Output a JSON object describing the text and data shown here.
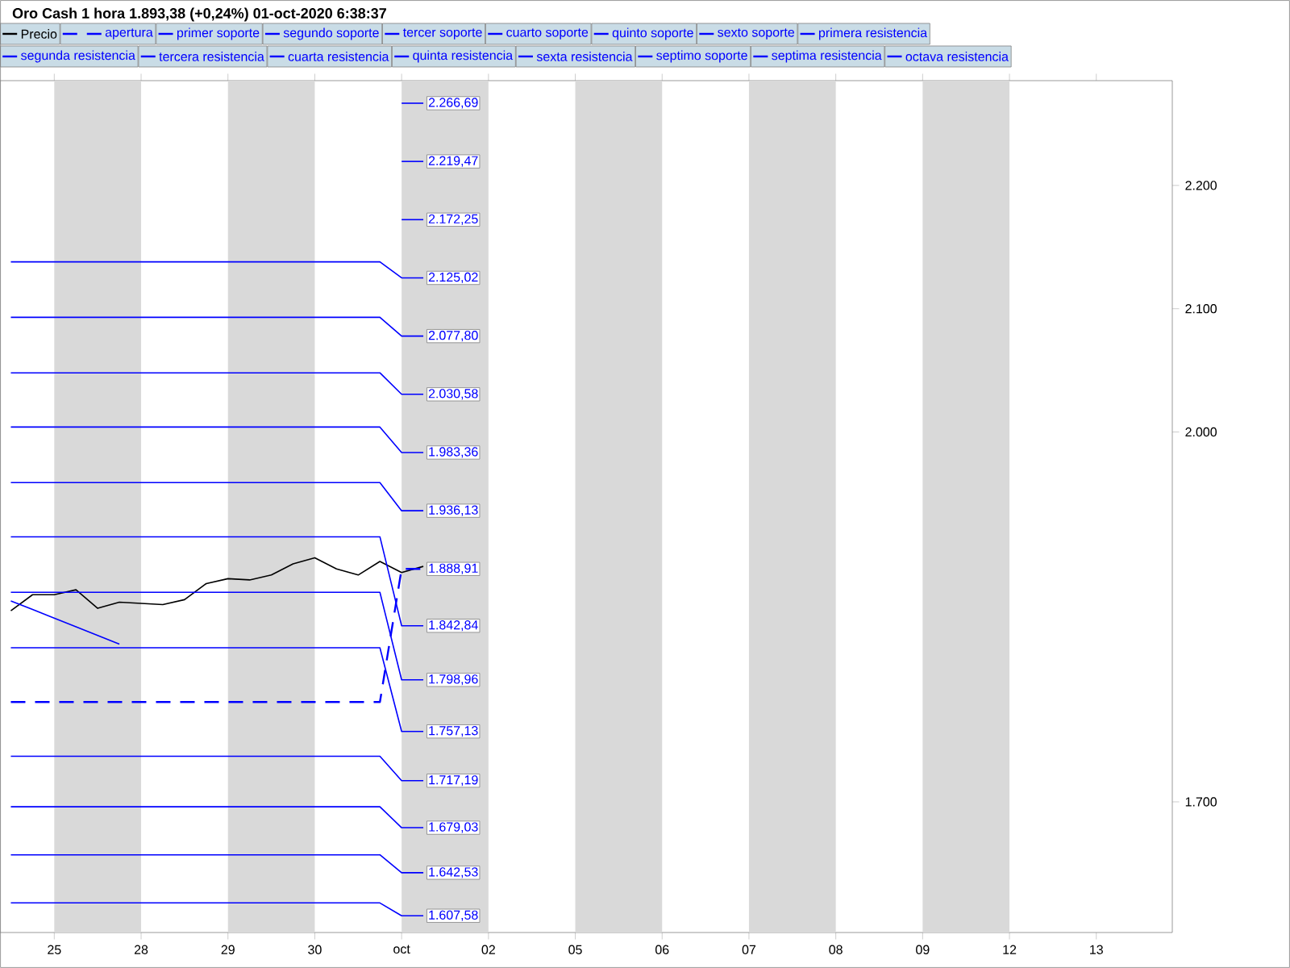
{
  "chart_data": {
    "type": "line",
    "title": "Oro Cash   1 hora   1.893,38 (+0,24%)   01-oct-2020 6:38:37",
    "legend": "top",
    "categories": [
      null,
      null,
      "25",
      null,
      null,
      null,
      "28",
      null,
      null,
      null,
      "29",
      null,
      null,
      null,
      "30",
      null,
      null,
      null,
      "oct",
      null,
      null,
      null,
      "02",
      null,
      null,
      null,
      "05",
      null,
      null,
      null,
      "06",
      null,
      null,
      null,
      "07",
      null,
      null,
      null,
      "08",
      null,
      null,
      null,
      "09",
      null,
      null,
      null,
      "12",
      null,
      null,
      null,
      "13",
      null,
      null,
      null
    ],
    "ylim": [
      1594,
      2285
    ],
    "yticks": [
      {
        "value": 1700,
        "label": "1.700"
      },
      {
        "value": 2000,
        "label": "2.000"
      },
      {
        "value": 2100,
        "label": "2.100"
      },
      {
        "value": 2200,
        "label": "2.200"
      }
    ],
    "bands": [
      {
        "axis": "x",
        "from": "25",
        "to": "28",
        "color": "#d9d9d9"
      },
      {
        "axis": "x",
        "from": "29",
        "to": "30",
        "color": "#d9d9d9"
      },
      {
        "axis": "x",
        "from": "oct",
        "to": "02",
        "color": "#d9d9d9"
      },
      {
        "axis": "x",
        "from": "05",
        "to": "06",
        "color": "#d9d9d9"
      },
      {
        "axis": "x",
        "from": "07",
        "to": "08",
        "color": "#d9d9d9"
      },
      {
        "axis": "x",
        "from": "09",
        "to": "12",
        "color": "#d9d9d9"
      }
    ],
    "series": [
      {
        "name": "Precio",
        "color": "#000000",
        "values": [
          1855,
          1868,
          1868,
          1872,
          1857,
          1862,
          1861,
          1860,
          1864,
          1877,
          1881,
          1880,
          1884,
          1893,
          1898,
          1889,
          1884,
          1895,
          1886,
          1891,
          null,
          null,
          null,
          null,
          null,
          null,
          null,
          null,
          null,
          null,
          null,
          null,
          null,
          null,
          null,
          null,
          null,
          null,
          null,
          null,
          null,
          null,
          null,
          null,
          null,
          null,
          null,
          null,
          null,
          null,
          null,
          null,
          null,
          null
        ]
      },
      {
        "name": "apertura",
        "color": "#0000ff",
        "line_style": "dashed",
        "values": [
          1781,
          1781,
          1781,
          1781,
          1781,
          1781,
          1781,
          1781,
          1781,
          1781,
          1781,
          1781,
          1781,
          1781,
          1781,
          1781,
          1781,
          1781,
          1888.91,
          1888.91,
          null,
          null,
          null,
          null,
          null,
          null,
          null,
          null,
          null,
          null,
          null,
          null,
          null,
          null,
          null,
          null,
          null,
          null,
          null,
          null,
          null,
          null,
          null,
          null,
          null,
          null,
          null,
          null,
          null,
          null,
          null,
          null,
          null,
          null
        ],
        "value_labels": [
          null,
          null,
          null,
          null,
          null,
          null,
          null,
          null,
          null,
          null,
          null,
          null,
          null,
          null,
          null,
          null,
          null,
          null,
          null,
          "1.888,91",
          null,
          null,
          null,
          null,
          null,
          null,
          null,
          null,
          null,
          null,
          null,
          null,
          null,
          null,
          null,
          null,
          null,
          null,
          null,
          null,
          null,
          null,
          null,
          null,
          null,
          null,
          null,
          null,
          null,
          null,
          null,
          null,
          null,
          null
        ]
      },
      {
        "name": "primer soporte",
        "color": "#0000ff",
        "values": [
          1915,
          1915,
          1915,
          1915,
          1915,
          1915,
          1915,
          1915,
          1915,
          1915,
          1915,
          1915,
          1915,
          1915,
          1915,
          1915,
          1915,
          1915,
          1842.84,
          1842.84,
          null,
          null,
          null,
          null,
          null,
          null,
          null,
          null,
          null,
          null,
          null,
          null,
          null,
          null,
          null,
          null,
          null,
          null,
          null,
          null,
          null,
          null,
          null,
          null,
          null,
          null,
          null,
          null,
          null,
          null,
          null,
          null,
          null,
          null
        ],
        "value_labels": [
          null,
          null,
          null,
          null,
          null,
          null,
          null,
          null,
          null,
          null,
          null,
          null,
          null,
          null,
          null,
          null,
          null,
          null,
          null,
          "1.842,84",
          null,
          null,
          null,
          null,
          null,
          null,
          null,
          null,
          null,
          null,
          null,
          null,
          null,
          null,
          null,
          null,
          null,
          null,
          null,
          null,
          null,
          null,
          null,
          null,
          null,
          null,
          null,
          null,
          null,
          null,
          null,
          null,
          null,
          null
        ]
      },
      {
        "name": "segundo soporte",
        "color": "#0000ff",
        "values": [
          1870,
          1870,
          1870,
          1870,
          1870,
          1870,
          1870,
          1870,
          1870,
          1870,
          1870,
          1870,
          1870,
          1870,
          1870,
          1870,
          1870,
          1870,
          1798.96,
          1798.96,
          null,
          null,
          null,
          null,
          null,
          null,
          null,
          null,
          null,
          null,
          null,
          null,
          null,
          null,
          null,
          null,
          null,
          null,
          null,
          null,
          null,
          null,
          null,
          null,
          null,
          null,
          null,
          null,
          null,
          null,
          null,
          null,
          null,
          null
        ],
        "value_labels": [
          null,
          null,
          null,
          null,
          null,
          null,
          null,
          null,
          null,
          null,
          null,
          null,
          null,
          null,
          null,
          null,
          null,
          null,
          null,
          "1.798,96",
          null,
          null,
          null,
          null,
          null,
          null,
          null,
          null,
          null,
          null,
          null,
          null,
          null,
          null,
          null,
          null,
          null,
          null,
          null,
          null,
          null,
          null,
          null,
          null,
          null,
          null,
          null,
          null,
          null,
          null,
          null,
          null,
          null,
          null
        ]
      },
      {
        "name": "tercer soporte",
        "color": "#0000ff",
        "values": [
          1825,
          1825,
          1825,
          1825,
          1825,
          1825,
          1825,
          1825,
          1825,
          1825,
          1825,
          1825,
          1825,
          1825,
          1825,
          1825,
          1825,
          1825,
          1757.13,
          1757.13,
          null,
          null,
          null,
          null,
          null,
          null,
          null,
          null,
          null,
          null,
          null,
          null,
          null,
          null,
          null,
          null,
          null,
          null,
          null,
          null,
          null,
          null,
          null,
          null,
          null,
          null,
          null,
          null,
          null,
          null,
          null,
          null,
          null,
          null
        ],
        "value_labels": [
          null,
          null,
          null,
          null,
          null,
          null,
          null,
          null,
          null,
          null,
          null,
          null,
          null,
          null,
          null,
          null,
          null,
          null,
          null,
          "1.757,13",
          null,
          null,
          null,
          null,
          null,
          null,
          null,
          null,
          null,
          null,
          null,
          null,
          null,
          null,
          null,
          null,
          null,
          null,
          null,
          null,
          null,
          null,
          null,
          null,
          null,
          null,
          null,
          null,
          null,
          null,
          null,
          null,
          null,
          null
        ]
      },
      {
        "name": "cuarto soporte",
        "color": "#0000ff",
        "values": [
          1737,
          1737,
          1737,
          1737,
          1737,
          1737,
          1737,
          1737,
          1737,
          1737,
          1737,
          1737,
          1737,
          1737,
          1737,
          1737,
          1737,
          1737,
          1717.19,
          1717.19,
          null,
          null,
          null,
          null,
          null,
          null,
          null,
          null,
          null,
          null,
          null,
          null,
          null,
          null,
          null,
          null,
          null,
          null,
          null,
          null,
          null,
          null,
          null,
          null,
          null,
          null,
          null,
          null,
          null,
          null,
          null,
          null,
          null,
          null
        ],
        "value_labels": [
          null,
          null,
          null,
          null,
          null,
          null,
          null,
          null,
          null,
          null,
          null,
          null,
          null,
          null,
          null,
          null,
          null,
          null,
          null,
          "1.717,19",
          null,
          null,
          null,
          null,
          null,
          null,
          null,
          null,
          null,
          null,
          null,
          null,
          null,
          null,
          null,
          null,
          null,
          null,
          null,
          null,
          null,
          null,
          null,
          null,
          null,
          null,
          null,
          null,
          null,
          null,
          null,
          null,
          null,
          null
        ]
      },
      {
        "name": "quinto soporte",
        "color": "#0000ff",
        "values": [
          1696,
          1696,
          1696,
          1696,
          1696,
          1696,
          1696,
          1696,
          1696,
          1696,
          1696,
          1696,
          1696,
          1696,
          1696,
          1696,
          1696,
          1696,
          1679.03,
          1679.03,
          null,
          null,
          null,
          null,
          null,
          null,
          null,
          null,
          null,
          null,
          null,
          null,
          null,
          null,
          null,
          null,
          null,
          null,
          null,
          null,
          null,
          null,
          null,
          null,
          null,
          null,
          null,
          null,
          null,
          null,
          null,
          null,
          null,
          null
        ],
        "value_labels": [
          null,
          null,
          null,
          null,
          null,
          null,
          null,
          null,
          null,
          null,
          null,
          null,
          null,
          null,
          null,
          null,
          null,
          null,
          null,
          "1.679,03",
          null,
          null,
          null,
          null,
          null,
          null,
          null,
          null,
          null,
          null,
          null,
          null,
          null,
          null,
          null,
          null,
          null,
          null,
          null,
          null,
          null,
          null,
          null,
          null,
          null,
          null,
          null,
          null,
          null,
          null,
          null,
          null,
          null,
          null
        ]
      },
      {
        "name": "sexto soporte",
        "color": "#0000ff",
        "values": [
          1657,
          1657,
          1657,
          1657,
          1657,
          1657,
          1657,
          1657,
          1657,
          1657,
          1657,
          1657,
          1657,
          1657,
          1657,
          1657,
          1657,
          1657,
          1642.53,
          1642.53,
          null,
          null,
          null,
          null,
          null,
          null,
          null,
          null,
          null,
          null,
          null,
          null,
          null,
          null,
          null,
          null,
          null,
          null,
          null,
          null,
          null,
          null,
          null,
          null,
          null,
          null,
          null,
          null,
          null,
          null,
          null,
          null,
          null,
          null
        ],
        "value_labels": [
          null,
          null,
          null,
          null,
          null,
          null,
          null,
          null,
          null,
          null,
          null,
          null,
          null,
          null,
          null,
          null,
          null,
          null,
          null,
          "1.642,53",
          null,
          null,
          null,
          null,
          null,
          null,
          null,
          null,
          null,
          null,
          null,
          null,
          null,
          null,
          null,
          null,
          null,
          null,
          null,
          null,
          null,
          null,
          null,
          null,
          null,
          null,
          null,
          null,
          null,
          null,
          null,
          null,
          null,
          null
        ]
      },
      {
        "name": "primera resistencia",
        "color": "#0000ff",
        "values": [
          1959,
          1959,
          1959,
          1959,
          1959,
          1959,
          1959,
          1959,
          1959,
          1959,
          1959,
          1959,
          1959,
          1959,
          1959,
          1959,
          1959,
          1959,
          1936.13,
          1936.13,
          null,
          null,
          null,
          null,
          null,
          null,
          null,
          null,
          null,
          null,
          null,
          null,
          null,
          null,
          null,
          null,
          null,
          null,
          null,
          null,
          null,
          null,
          null,
          null,
          null,
          null,
          null,
          null,
          null,
          null,
          null,
          null,
          null,
          null
        ],
        "value_labels": [
          null,
          null,
          null,
          null,
          null,
          null,
          null,
          null,
          null,
          null,
          null,
          null,
          null,
          null,
          null,
          null,
          null,
          null,
          null,
          "1.936,13",
          null,
          null,
          null,
          null,
          null,
          null,
          null,
          null,
          null,
          null,
          null,
          null,
          null,
          null,
          null,
          null,
          null,
          null,
          null,
          null,
          null,
          null,
          null,
          null,
          null,
          null,
          null,
          null,
          null,
          null,
          null,
          null,
          null,
          null
        ]
      },
      {
        "name": "segunda resistencia",
        "color": "#0000ff",
        "values": [
          2004,
          2004,
          2004,
          2004,
          2004,
          2004,
          2004,
          2004,
          2004,
          2004,
          2004,
          2004,
          2004,
          2004,
          2004,
          2004,
          2004,
          2004,
          1983.36,
          1983.36,
          null,
          null,
          null,
          null,
          null,
          null,
          null,
          null,
          null,
          null,
          null,
          null,
          null,
          null,
          null,
          null,
          null,
          null,
          null,
          null,
          null,
          null,
          null,
          null,
          null,
          null,
          null,
          null,
          null,
          null,
          null,
          null,
          null,
          null
        ],
        "value_labels": [
          null,
          null,
          null,
          null,
          null,
          null,
          null,
          null,
          null,
          null,
          null,
          null,
          null,
          null,
          null,
          null,
          null,
          null,
          null,
          "1.983,36",
          null,
          null,
          null,
          null,
          null,
          null,
          null,
          null,
          null,
          null,
          null,
          null,
          null,
          null,
          null,
          null,
          null,
          null,
          null,
          null,
          null,
          null,
          null,
          null,
          null,
          null,
          null,
          null,
          null,
          null,
          null,
          null,
          null,
          null
        ]
      },
      {
        "name": "tercera resistencia",
        "color": "#0000ff",
        "values": [
          2048,
          2048,
          2048,
          2048,
          2048,
          2048,
          2048,
          2048,
          2048,
          2048,
          2048,
          2048,
          2048,
          2048,
          2048,
          2048,
          2048,
          2048,
          2030.58,
          2030.58,
          null,
          null,
          null,
          null,
          null,
          null,
          null,
          null,
          null,
          null,
          null,
          null,
          null,
          null,
          null,
          null,
          null,
          null,
          null,
          null,
          null,
          null,
          null,
          null,
          null,
          null,
          null,
          null,
          null,
          null,
          null,
          null,
          null,
          null
        ],
        "value_labels": [
          null,
          null,
          null,
          null,
          null,
          null,
          null,
          null,
          null,
          null,
          null,
          null,
          null,
          null,
          null,
          null,
          null,
          null,
          null,
          "2.030,58",
          null,
          null,
          null,
          null,
          null,
          null,
          null,
          null,
          null,
          null,
          null,
          null,
          null,
          null,
          null,
          null,
          null,
          null,
          null,
          null,
          null,
          null,
          null,
          null,
          null,
          null,
          null,
          null,
          null,
          null,
          null,
          null,
          null,
          null
        ]
      },
      {
        "name": "cuarta resistencia",
        "color": "#0000ff",
        "values": [
          2093,
          2093,
          2093,
          2093,
          2093,
          2093,
          2093,
          2093,
          2093,
          2093,
          2093,
          2093,
          2093,
          2093,
          2093,
          2093,
          2093,
          2093,
          2077.8,
          2077.8,
          null,
          null,
          null,
          null,
          null,
          null,
          null,
          null,
          null,
          null,
          null,
          null,
          null,
          null,
          null,
          null,
          null,
          null,
          null,
          null,
          null,
          null,
          null,
          null,
          null,
          null,
          null,
          null,
          null,
          null,
          null,
          null,
          null,
          null
        ],
        "value_labels": [
          null,
          null,
          null,
          null,
          null,
          null,
          null,
          null,
          null,
          null,
          null,
          null,
          null,
          null,
          null,
          null,
          null,
          null,
          null,
          "2.077,80",
          null,
          null,
          null,
          null,
          null,
          null,
          null,
          null,
          null,
          null,
          null,
          null,
          null,
          null,
          null,
          null,
          null,
          null,
          null,
          null,
          null,
          null,
          null,
          null,
          null,
          null,
          null,
          null,
          null,
          null,
          null,
          null,
          null,
          null
        ]
      },
      {
        "name": "quinta resistencia",
        "color": "#0000ff",
        "values": [
          2138,
          2138,
          2138,
          2138,
          2138,
          2138,
          2138,
          2138,
          2138,
          2138,
          2138,
          2138,
          2138,
          2138,
          2138,
          2138,
          2138,
          2138,
          2125.02,
          2125.02,
          null,
          null,
          null,
          null,
          null,
          null,
          null,
          null,
          null,
          null,
          null,
          null,
          null,
          null,
          null,
          null,
          null,
          null,
          null,
          null,
          null,
          null,
          null,
          null,
          null,
          null,
          null,
          null,
          null,
          null,
          null,
          null,
          null,
          null
        ],
        "value_labels": [
          null,
          null,
          null,
          null,
          null,
          null,
          null,
          null,
          null,
          null,
          null,
          null,
          null,
          null,
          null,
          null,
          null,
          null,
          null,
          "2.125,02",
          null,
          null,
          null,
          null,
          null,
          null,
          null,
          null,
          null,
          null,
          null,
          null,
          null,
          null,
          null,
          null,
          null,
          null,
          null,
          null,
          null,
          null,
          null,
          null,
          null,
          null,
          null,
          null,
          null,
          null,
          null,
          null,
          null,
          null
        ]
      },
      {
        "name": "sexta resistencia",
        "color": "#0000ff",
        "values": [
          null,
          null,
          null,
          null,
          null,
          null,
          null,
          null,
          null,
          null,
          null,
          null,
          null,
          null,
          null,
          null,
          null,
          null,
          2172.25,
          2172.25,
          null,
          null,
          null,
          null,
          null,
          null,
          null,
          null,
          null,
          null,
          null,
          null,
          null,
          null,
          null,
          null,
          null,
          null,
          null,
          null,
          null,
          null,
          null,
          null,
          null,
          null,
          null,
          null,
          null,
          null,
          null,
          null,
          null,
          null
        ],
        "value_labels": [
          null,
          null,
          null,
          null,
          null,
          null,
          null,
          null,
          null,
          null,
          null,
          null,
          null,
          null,
          null,
          null,
          null,
          null,
          null,
          "2.172,25",
          null,
          null,
          null,
          null,
          null,
          null,
          null,
          null,
          null,
          null,
          null,
          null,
          null,
          null,
          null,
          null,
          null,
          null,
          null,
          null,
          null,
          null,
          null,
          null,
          null,
          null,
          null,
          null,
          null,
          null,
          null,
          null,
          null,
          null
        ]
      },
      {
        "name": "septimo soporte",
        "color": "#0000ff",
        "values": [
          1618,
          1618,
          1618,
          1618,
          1618,
          1618,
          1618,
          1618,
          1618,
          1618,
          1618,
          1618,
          1618,
          1618,
          1618,
          1618,
          1618,
          1618,
          1607.58,
          1607.58,
          null,
          null,
          null,
          null,
          null,
          null,
          null,
          null,
          null,
          null,
          null,
          null,
          null,
          null,
          null,
          null,
          null,
          null,
          null,
          null,
          null,
          null,
          null,
          null,
          null,
          null,
          null,
          null,
          null,
          null,
          null,
          null,
          null,
          null
        ],
        "value_labels": [
          null,
          null,
          null,
          null,
          null,
          null,
          null,
          null,
          null,
          null,
          null,
          null,
          null,
          null,
          null,
          null,
          null,
          null,
          null,
          "1.607,58",
          null,
          null,
          null,
          null,
          null,
          null,
          null,
          null,
          null,
          null,
          null,
          null,
          null,
          null,
          null,
          null,
          null,
          null,
          null,
          null,
          null,
          null,
          null,
          null,
          null,
          null,
          null,
          null,
          null,
          null,
          null,
          null,
          null,
          null
        ]
      },
      {
        "name": "septima resistencia",
        "color": "#0000ff",
        "values": [
          null,
          null,
          null,
          null,
          null,
          null,
          null,
          null,
          null,
          null,
          null,
          null,
          null,
          null,
          null,
          null,
          null,
          null,
          2219.47,
          2219.47,
          null,
          null,
          null,
          null,
          null,
          null,
          null,
          null,
          null,
          null,
          null,
          null,
          null,
          null,
          null,
          null,
          null,
          null,
          null,
          null,
          null,
          null,
          null,
          null,
          null,
          null,
          null,
          null,
          null,
          null,
          null,
          null,
          null,
          null
        ],
        "value_labels": [
          null,
          null,
          null,
          null,
          null,
          null,
          null,
          null,
          null,
          null,
          null,
          null,
          null,
          null,
          null,
          null,
          null,
          null,
          null,
          "2.219,47",
          null,
          null,
          null,
          null,
          null,
          null,
          null,
          null,
          null,
          null,
          null,
          null,
          null,
          null,
          null,
          null,
          null,
          null,
          null,
          null,
          null,
          null,
          null,
          null,
          null,
          null,
          null,
          null,
          null,
          null,
          null,
          null,
          null,
          null
        ]
      },
      {
        "name": "octava resistencia",
        "color": "#0000ff",
        "values": [
          null,
          null,
          null,
          null,
          null,
          null,
          null,
          null,
          null,
          null,
          null,
          null,
          null,
          null,
          null,
          null,
          null,
          null,
          2266.69,
          2266.69,
          null,
          null,
          null,
          null,
          null,
          null,
          null,
          null,
          null,
          null,
          null,
          null,
          null,
          null,
          null,
          null,
          null,
          null,
          null,
          null,
          null,
          null,
          null,
          null,
          null,
          null,
          null,
          null,
          null,
          null,
          null,
          null,
          null,
          null
        ],
        "value_labels": [
          null,
          null,
          null,
          null,
          null,
          null,
          null,
          null,
          null,
          null,
          null,
          null,
          null,
          null,
          null,
          null,
          null,
          null,
          null,
          "2.266,69",
          null,
          null,
          null,
          null,
          null,
          null,
          null,
          null,
          null,
          null,
          null,
          null,
          null,
          null,
          null,
          null,
          null,
          null,
          null,
          null,
          null,
          null,
          null,
          null,
          null,
          null,
          null,
          null,
          null,
          null,
          null,
          null,
          null,
          null
        ]
      },
      {
        "color": "#0000ff",
        "values": [
          1863,
          1856,
          1849,
          1842,
          1835,
          1828,
          null,
          null,
          null,
          null,
          null,
          null,
          null,
          null,
          null,
          null,
          null,
          null,
          null,
          null,
          null,
          null,
          null,
          null,
          null,
          null,
          null,
          null,
          null,
          null,
          null,
          null,
          null,
          null,
          null,
          null,
          null,
          null,
          null,
          null,
          null,
          null,
          null,
          null,
          null,
          null,
          null,
          null,
          null,
          null,
          null,
          null,
          null,
          null
        ]
      }
    ]
  }
}
